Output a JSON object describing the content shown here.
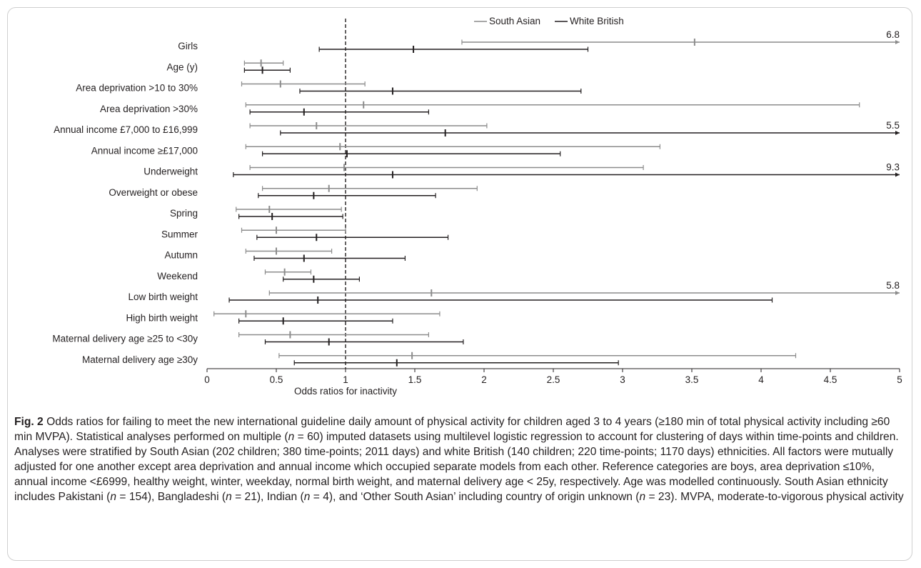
{
  "chart_data": {
    "type": "forest",
    "xlabel": "Odds ratios for inactivity",
    "xlim": [
      0,
      5
    ],
    "x_ticks": [
      0,
      0.5,
      1,
      1.5,
      2,
      2.5,
      3,
      3.5,
      4,
      4.5,
      5
    ],
    "x_tick_labels": [
      "0",
      "0.5",
      "1",
      "1.5",
      "2",
      "2.5",
      "3",
      "3.5",
      "4",
      "4.5",
      "5"
    ],
    "reference_line": 1,
    "legend_position": "top-center",
    "series": [
      {
        "name": "South Asian",
        "color": "#8c8c8c"
      },
      {
        "name": "White British",
        "color": "#231f20"
      }
    ],
    "rows": [
      {
        "label": "Girls",
        "south_asian": {
          "or": 3.52,
          "lo": 1.84,
          "hi": 6.8,
          "truncated_label": "6.8"
        },
        "white_british": {
          "or": 1.49,
          "lo": 0.81,
          "hi": 2.75
        }
      },
      {
        "label": "Age (y)",
        "south_asian": {
          "or": 0.39,
          "lo": 0.27,
          "hi": 0.55
        },
        "white_british": {
          "or": 0.4,
          "lo": 0.27,
          "hi": 0.6
        }
      },
      {
        "label": "Area deprivation >10 to 30%",
        "south_asian": {
          "or": 0.53,
          "lo": 0.25,
          "hi": 1.14
        },
        "white_british": {
          "or": 1.34,
          "lo": 0.67,
          "hi": 2.7
        }
      },
      {
        "label": "Area deprivation >30%",
        "south_asian": {
          "or": 1.13,
          "lo": 0.28,
          "hi": 4.71
        },
        "white_british": {
          "or": 0.7,
          "lo": 0.31,
          "hi": 1.6
        }
      },
      {
        "label": "Annual income £7,000 to £16,999",
        "south_asian": {
          "or": 0.79,
          "lo": 0.31,
          "hi": 2.02
        },
        "white_british": {
          "or": 1.72,
          "lo": 0.53,
          "hi": 5.5,
          "truncated_label": "5.5"
        }
      },
      {
        "label": "Annual income ≥£17,000",
        "south_asian": {
          "or": 0.96,
          "lo": 0.28,
          "hi": 3.27
        },
        "white_british": {
          "or": 1.01,
          "lo": 0.4,
          "hi": 2.55
        }
      },
      {
        "label": "Underweight",
        "south_asian": {
          "or": 0.99,
          "lo": 0.31,
          "hi": 3.15
        },
        "white_british": {
          "or": 1.34,
          "lo": 0.19,
          "hi": 9.3,
          "truncated_label": "9.3"
        }
      },
      {
        "label": "Overweight or obese",
        "south_asian": {
          "or": 0.88,
          "lo": 0.4,
          "hi": 1.95
        },
        "white_british": {
          "or": 0.77,
          "lo": 0.37,
          "hi": 1.65
        }
      },
      {
        "label": "Spring",
        "south_asian": {
          "or": 0.45,
          "lo": 0.21,
          "hi": 0.97
        },
        "white_british": {
          "or": 0.47,
          "lo": 0.23,
          "hi": 0.98
        }
      },
      {
        "label": "Summer",
        "south_asian": {
          "or": 0.5,
          "lo": 0.25,
          "hi": 1.0
        },
        "white_british": {
          "or": 0.79,
          "lo": 0.36,
          "hi": 1.74
        }
      },
      {
        "label": "Autumn",
        "south_asian": {
          "or": 0.5,
          "lo": 0.28,
          "hi": 0.9
        },
        "white_british": {
          "or": 0.7,
          "lo": 0.34,
          "hi": 1.43
        }
      },
      {
        "label": "Weekend",
        "south_asian": {
          "or": 0.56,
          "lo": 0.42,
          "hi": 0.75
        },
        "white_british": {
          "or": 0.77,
          "lo": 0.55,
          "hi": 1.1
        }
      },
      {
        "label": "Low birth weight",
        "south_asian": {
          "or": 1.62,
          "lo": 0.45,
          "hi": 5.8,
          "truncated_label": "5.8"
        },
        "white_british": {
          "or": 0.8,
          "lo": 0.16,
          "hi": 4.08
        }
      },
      {
        "label": "High birth weight",
        "south_asian": {
          "or": 0.28,
          "lo": 0.05,
          "hi": 1.68
        },
        "white_british": {
          "or": 0.55,
          "lo": 0.23,
          "hi": 1.34
        }
      },
      {
        "label": "Maternal delivery age ≥25 to <30y",
        "south_asian": {
          "or": 0.6,
          "lo": 0.23,
          "hi": 1.6
        },
        "white_british": {
          "or": 0.88,
          "lo": 0.42,
          "hi": 1.85
        }
      },
      {
        "label": "Maternal delivery age ≥30y",
        "south_asian": {
          "or": 1.48,
          "lo": 0.52,
          "hi": 4.25
        },
        "white_british": {
          "or": 1.37,
          "lo": 0.63,
          "hi": 2.97
        }
      }
    ]
  },
  "caption": {
    "fig_label": "Fig. 2",
    "parts": [
      " Odds ratios for failing to meet the new international guideline daily amount of physical activity for children aged 3 to 4 years (≥180 min of total physical activity including ≥60 min MVPA). Statistical analyses performed on multiple (",
      "n",
      " = 60) imputed datasets using multilevel logistic regression to account for clustering of days within time-points and children. Analyses were stratified by South Asian (202 children; 380 time-points; 2011 days) and white British (140 children; 220 time-points; 1170 days) ethnicities. All factors were mutually adjusted for one another except area deprivation and annual income which occupied separate models from each other. Reference categories are boys, area deprivation ≤10%, annual income <£6999, healthy weight, winter, weekday, normal birth weight, and maternal delivery age < 25y, respectively. Age was modelled continuously. South Asian ethnicity includes Pakistani (",
      "n",
      " = 154), Bangladeshi (",
      "n",
      " = 21), Indian (",
      "n",
      " = 4), and ‘Other South Asian’ including country of origin unknown (",
      "n",
      " = 23). MVPA, moderate-to-vigorous physical activity"
    ]
  }
}
